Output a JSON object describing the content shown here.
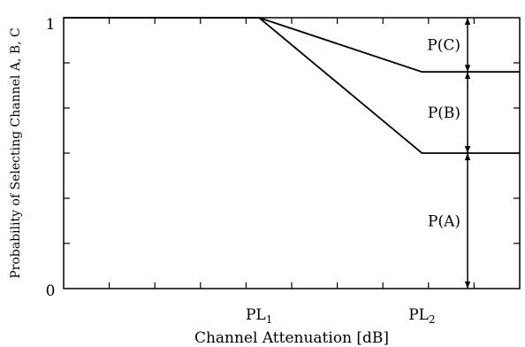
{
  "chart_data": {
    "type": "line",
    "xlabel": "Channel Attenuation [dB]",
    "ylabel": "Probability of Selecting Channel A, B, C",
    "ylim": [
      0,
      1
    ],
    "y_ticks": [
      {
        "value": 0,
        "label": "0"
      },
      {
        "value": 1,
        "label": "1"
      }
    ],
    "x_ticks": [
      {
        "key": "PL1",
        "base": "PL",
        "sub": "1"
      },
      {
        "key": "PL2",
        "base": "PL",
        "sub": "2"
      }
    ],
    "x_domain": [
      0,
      7
    ],
    "x_positions": {
      "PL1": 3,
      "PL2": 5.5
    },
    "series": [
      {
        "x": [
          0,
          3,
          5.5,
          7
        ],
        "y": [
          1,
          1,
          0.5,
          0.5
        ]
      },
      {
        "x": [
          0,
          3,
          5.5,
          7
        ],
        "y": [
          1,
          1,
          0.8,
          0.8
        ]
      }
    ],
    "annotations": [
      {
        "label": "P(A)",
        "from": 0,
        "to": 0.5
      },
      {
        "label": "P(B)",
        "from": 0.5,
        "to": 0.8
      },
      {
        "label": "P(C)",
        "from": 0.8,
        "to": 1
      }
    ],
    "annotation_x": 6.2,
    "grid": false,
    "legend": "none"
  }
}
